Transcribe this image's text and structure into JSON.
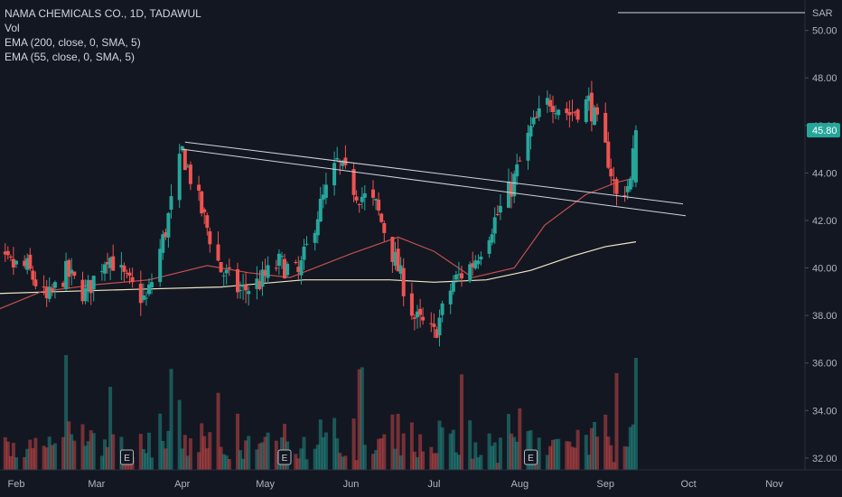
{
  "legend": {
    "symbol": "NAMA CHEMICALS CO., 1D, TADAWUL",
    "vol": "Vol",
    "ema200": "EMA (200, close, 0, SMA, 5)",
    "ema55": "EMA (55, close, 0, SMA, 5)"
  },
  "price_axis": {
    "currency": "SAR",
    "last_price": "45.80",
    "last_price_color": "#26a69a"
  },
  "colors": {
    "background": "#131722",
    "up": "#26a69a",
    "down": "#ef5350",
    "ema200": "#f1e7c6",
    "ema55": "#c0504d",
    "trendline": "#d1d4dc"
  },
  "chart_data": {
    "type": "candlestick",
    "symbol": "NAMA CHEMICALS CO.",
    "interval": "1D",
    "exchange": "TADAWUL",
    "ylim": [
      31.5,
      50.9
    ],
    "yticks": [
      32.0,
      34.0,
      36.0,
      38.0,
      40.0,
      42.0,
      44.0,
      46.0,
      48.0,
      50.0
    ],
    "ytick_labels": [
      "32.00",
      "34.00",
      "36.00",
      "38.00",
      "40.00",
      "42.00",
      "44.00",
      "46.00",
      "48.00",
      "50.00"
    ],
    "xticks": [
      "Feb",
      "Mar",
      "Apr",
      "May",
      "Jun",
      "Jul",
      "Aug",
      "Sep",
      "Oct",
      "Nov"
    ],
    "xtick_dates": [
      "2024-02-01",
      "2024-03-01",
      "2024-04-01",
      "2024-05-01",
      "2024-06-01",
      "2024-07-01",
      "2024-08-01",
      "2024-09-01",
      "2024-10-01",
      "2024-11-01"
    ],
    "anchors": {
      "first_bar_date": "2024-01-18",
      "first_bar_price": 41.8,
      "last_bar_date": "2024-09-12",
      "last_bar_price": 45.8
    },
    "path": [
      [
        "2024-01-18",
        41.8
      ],
      [
        "2024-01-25",
        40.2
      ],
      [
        "2024-02-05",
        40.0
      ],
      [
        "2024-02-12",
        38.6
      ],
      [
        "2024-02-19",
        39.8
      ],
      [
        "2024-02-26",
        38.9
      ],
      [
        "2024-03-05",
        40.6
      ],
      [
        "2024-03-12",
        39.4
      ],
      [
        "2024-03-19",
        38.6
      ],
      [
        "2024-03-26",
        41.6
      ],
      [
        "2024-04-01",
        44.9
      ],
      [
        "2024-04-08",
        42.4
      ],
      [
        "2024-04-15",
        39.9
      ],
      [
        "2024-04-22",
        39.0
      ],
      [
        "2024-04-29",
        39.4
      ],
      [
        "2024-05-06",
        40.2
      ],
      [
        "2024-05-13",
        39.7
      ],
      [
        "2024-05-20",
        42.3
      ],
      [
        "2024-05-27",
        44.4
      ],
      [
        "2024-06-03",
        43.2
      ],
      [
        "2024-06-10",
        42.6
      ],
      [
        "2024-06-17",
        40.3
      ],
      [
        "2024-06-24",
        37.9
      ],
      [
        "2024-07-01",
        37.2
      ],
      [
        "2024-07-08",
        39.4
      ],
      [
        "2024-07-15",
        40.2
      ],
      [
        "2024-07-22",
        41.8
      ],
      [
        "2024-07-29",
        43.4
      ],
      [
        "2024-08-05",
        45.8
      ],
      [
        "2024-08-12",
        47.1
      ],
      [
        "2024-08-19",
        46.5
      ],
      [
        "2024-08-26",
        47.0
      ],
      [
        "2024-09-02",
        44.6
      ],
      [
        "2024-09-05",
        43.0
      ],
      [
        "2024-09-10",
        43.6
      ],
      [
        "2024-09-12",
        45.8
      ]
    ],
    "ema200": [
      [
        "2024-01-18",
        38.9
      ],
      [
        "2024-02-15",
        39.0
      ],
      [
        "2024-03-15",
        39.1
      ],
      [
        "2024-04-15",
        39.2
      ],
      [
        "2024-05-15",
        39.5
      ],
      [
        "2024-06-15",
        39.5
      ],
      [
        "2024-07-01",
        39.4
      ],
      [
        "2024-07-20",
        39.5
      ],
      [
        "2024-08-05",
        39.9
      ],
      [
        "2024-08-20",
        40.5
      ],
      [
        "2024-09-01",
        40.9
      ],
      [
        "2024-09-12",
        41.1
      ]
    ],
    "ema55": [
      [
        "2024-01-18",
        37.9
      ],
      [
        "2024-02-10",
        39.0
      ],
      [
        "2024-03-01",
        39.3
      ],
      [
        "2024-03-20",
        39.5
      ],
      [
        "2024-04-10",
        40.1
      ],
      [
        "2024-04-25",
        39.8
      ],
      [
        "2024-05-10",
        39.6
      ],
      [
        "2024-06-01",
        40.6
      ],
      [
        "2024-06-18",
        41.3
      ],
      [
        "2024-07-01",
        40.7
      ],
      [
        "2024-07-15",
        39.6
      ],
      [
        "2024-07-30",
        40.0
      ],
      [
        "2024-08-10",
        41.8
      ],
      [
        "2024-08-25",
        43.1
      ],
      [
        "2024-09-05",
        43.6
      ],
      [
        "2024-09-12",
        43.8
      ]
    ],
    "trendlines": [
      {
        "start": [
          "2024-04-01",
          45.0
        ],
        "end": [
          "2024-09-30",
          42.2
        ]
      },
      {
        "start": [
          "2024-04-02",
          45.3
        ],
        "end": [
          "2024-09-29",
          42.7
        ]
      }
    ],
    "earnings_markers": [
      "2024-03-12",
      "2024-05-08",
      "2024-08-05"
    ],
    "earnings_label": "E",
    "grid": false,
    "legend_position": "top-left"
  }
}
